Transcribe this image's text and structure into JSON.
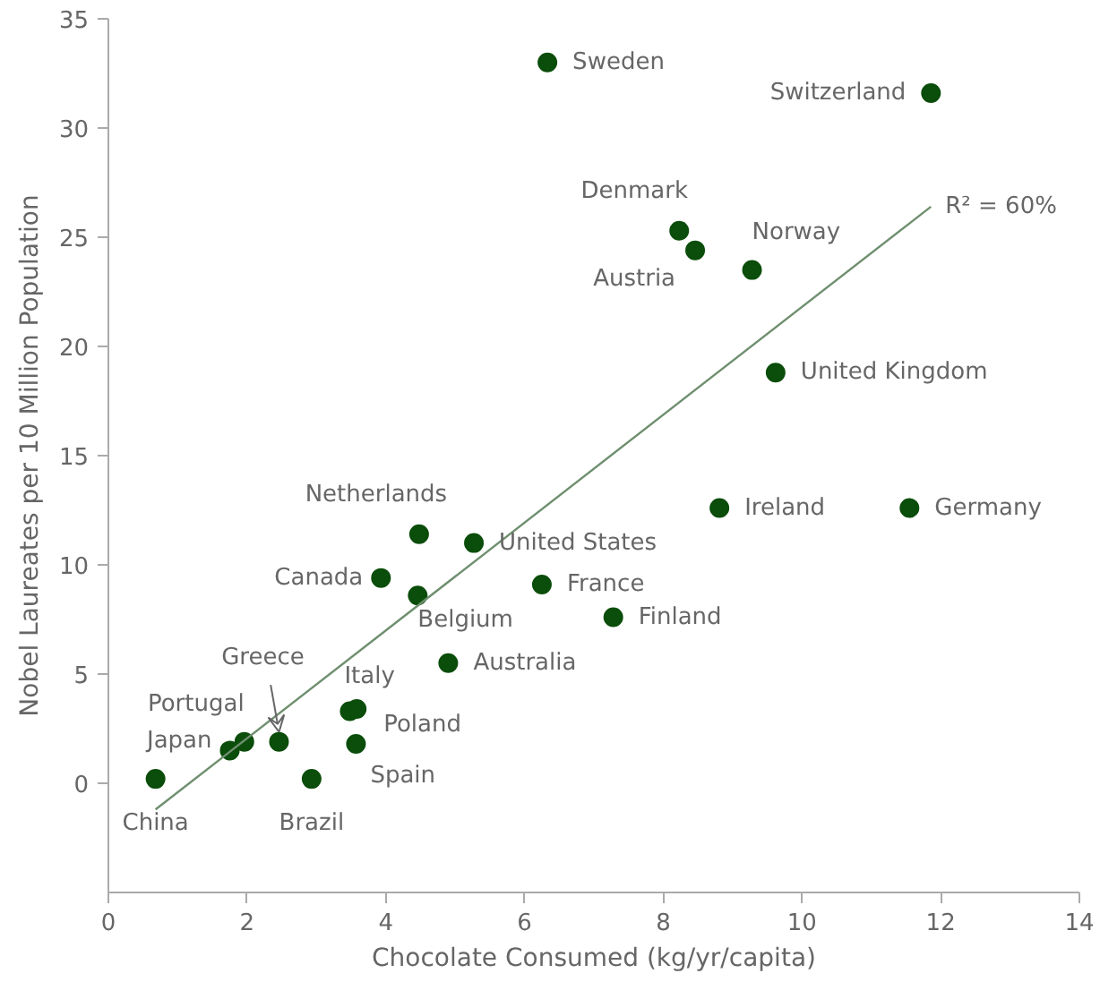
{
  "chart_data": {
    "type": "scatter",
    "xlabel": "Chocolate Consumed (kg/yr/capita)",
    "ylabel": "Nobel Laureates per 10 Million Population",
    "xlim": [
      0,
      14
    ],
    "xticks": [
      0,
      2,
      4,
      6,
      8,
      10,
      12,
      14
    ],
    "ylim": [
      -5,
      35
    ],
    "yticks": [
      0,
      5,
      10,
      15,
      20,
      25,
      30,
      35
    ],
    "grid": false,
    "marker": "circle",
    "series": [
      {
        "color": "#0b4d0b",
        "x": [
          6.33,
          11.86,
          8.23,
          8.46,
          9.28,
          9.62,
          8.81,
          11.55,
          4.48,
          5.27,
          3.93,
          4.46,
          6.25,
          7.28,
          4.9,
          3.48,
          3.58,
          3.57,
          2.46,
          1.96,
          1.75,
          0.68,
          2.93
        ],
        "values": [
          33.0,
          31.6,
          25.3,
          24.4,
          23.5,
          18.8,
          12.6,
          12.6,
          11.4,
          11.0,
          9.4,
          8.6,
          9.1,
          7.6,
          5.5,
          3.3,
          3.4,
          1.8,
          1.9,
          1.9,
          1.5,
          0.2,
          0.2
        ]
      },
      {
        "type": "line",
        "color": "#6f8f6f",
        "marker": "none",
        "x": [
          0.68,
          11.86
        ],
        "values": [
          -1.2,
          26.4
        ]
      }
    ],
    "annotations": [
      {
        "text": "Sweden",
        "x": 6.33,
        "y": 33.0
      },
      {
        "text": "Switzerland",
        "x": 11.86,
        "y": 31.6
      },
      {
        "text": "Denmark",
        "x": 8.23,
        "y": 25.3
      },
      {
        "text": "Austria",
        "x": 8.46,
        "y": 24.4
      },
      {
        "text": "Norway",
        "x": 9.28,
        "y": 23.5
      },
      {
        "text": "United Kingdom",
        "x": 9.62,
        "y": 18.8
      },
      {
        "text": "Ireland",
        "x": 8.81,
        "y": 12.6
      },
      {
        "text": "Germany",
        "x": 11.55,
        "y": 12.6
      },
      {
        "text": "Netherlands",
        "x": 4.48,
        "y": 11.4
      },
      {
        "text": "United States",
        "x": 5.27,
        "y": 11.0
      },
      {
        "text": "Canada",
        "x": 3.93,
        "y": 9.4
      },
      {
        "text": "Belgium",
        "x": 4.46,
        "y": 8.6
      },
      {
        "text": "France",
        "x": 6.25,
        "y": 9.1
      },
      {
        "text": "Finland",
        "x": 7.28,
        "y": 7.6
      },
      {
        "text": "Australia",
        "x": 4.9,
        "y": 5.5
      },
      {
        "text": "Italy",
        "x": 3.48,
        "y": 3.3
      },
      {
        "text": "Poland",
        "x": 3.58,
        "y": 3.4
      },
      {
        "text": "Spain",
        "x": 3.57,
        "y": 1.8
      },
      {
        "text": "Greece",
        "x": 2.46,
        "y": 1.9
      },
      {
        "text": "Portugal",
        "x": 1.96,
        "y": 1.9
      },
      {
        "text": "Japan",
        "x": 1.75,
        "y": 1.5
      },
      {
        "text": "China",
        "x": 0.68,
        "y": 0.2
      },
      {
        "text": "Brazil",
        "x": 2.93,
        "y": 0.2
      },
      {
        "text": "R² = 60%",
        "x": 11.86,
        "y": 26.4
      }
    ]
  }
}
